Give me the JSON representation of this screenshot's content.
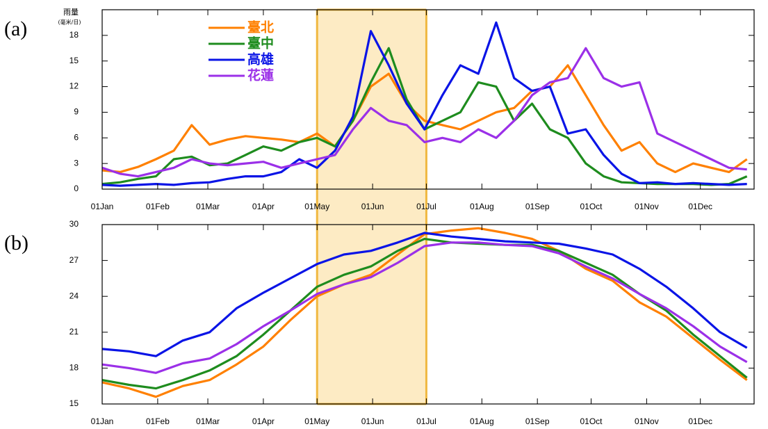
{
  "chart_data": [
    {
      "type": "line",
      "panel": "(a)",
      "ylabel": "雨量",
      "yunit": "(毫米/日)",
      "xlim": [
        1,
        365
      ],
      "ylim": [
        0,
        21
      ],
      "yticks": [
        0,
        3,
        6,
        9,
        12,
        15,
        18
      ],
      "xticks": [
        {
          "value": 1,
          "label": "01Jan"
        },
        {
          "value": 32,
          "label": "01Feb"
        },
        {
          "value": 60,
          "label": "01Mar"
        },
        {
          "value": 91,
          "label": "01Apr"
        },
        {
          "value": 121,
          "label": "01May"
        },
        {
          "value": 152,
          "label": "01Jun"
        },
        {
          "value": 182,
          "label": "01Jul"
        },
        {
          "value": 213,
          "label": "01Aug"
        },
        {
          "value": 244,
          "label": "01Sep"
        },
        {
          "value": 274,
          "label": "01Oct"
        },
        {
          "value": 305,
          "label": "01Nov"
        },
        {
          "value": 335,
          "label": "01Dec"
        }
      ],
      "shade": [
        121,
        182
      ],
      "shade_color": "#fdebc4",
      "shade_edge": "#f0b840",
      "legend": "upper-left",
      "x": [
        1,
        11,
        21,
        31,
        41,
        51,
        61,
        71,
        81,
        91,
        101,
        111,
        121,
        131,
        141,
        151,
        161,
        171,
        181,
        191,
        201,
        211,
        221,
        231,
        241,
        251,
        261,
        271,
        281,
        291,
        301,
        311,
        321,
        331,
        341,
        351,
        361
      ],
      "series": [
        {
          "name": "臺北",
          "color": "#ff8000",
          "values": [
            2.2,
            2.0,
            2.6,
            3.5,
            4.5,
            7.5,
            5.2,
            5.8,
            6.2,
            6.0,
            5.8,
            5.5,
            6.5,
            5.0,
            8.0,
            12.0,
            13.5,
            10.0,
            8.0,
            7.5,
            7.0,
            8.0,
            9.0,
            9.5,
            11.5,
            12.0,
            14.5,
            11.0,
            7.5,
            4.5,
            5.5,
            3.0,
            2.0,
            3.0,
            2.5,
            2.0,
            3.5
          ]
        },
        {
          "name": "臺中",
          "color": "#1e8c1e",
          "values": [
            0.6,
            0.8,
            1.2,
            1.5,
            3.5,
            3.8,
            2.8,
            3.0,
            4.0,
            5.0,
            4.5,
            5.5,
            6.0,
            5.0,
            8.0,
            12.5,
            16.5,
            10.5,
            7.0,
            8.0,
            9.0,
            12.5,
            12.0,
            8.0,
            10.0,
            7.0,
            6.0,
            3.0,
            1.5,
            0.8,
            0.7,
            0.6,
            0.6,
            0.6,
            0.5,
            0.6,
            1.5
          ]
        },
        {
          "name": "高雄",
          "color": "#0a14e6",
          "values": [
            0.5,
            0.4,
            0.5,
            0.6,
            0.5,
            0.7,
            0.8,
            1.2,
            1.5,
            1.5,
            2.0,
            3.5,
            2.5,
            4.5,
            8.5,
            18.5,
            14.5,
            10.0,
            7.0,
            11.0,
            14.5,
            13.5,
            19.5,
            13.0,
            11.5,
            12.0,
            6.5,
            7.0,
            4.0,
            1.8,
            0.7,
            0.8,
            0.6,
            0.7,
            0.6,
            0.5,
            0.6
          ]
        },
        {
          "name": "花蓮",
          "color": "#9b30e8",
          "values": [
            2.5,
            1.8,
            1.5,
            2.0,
            2.5,
            3.5,
            3.0,
            2.8,
            3.0,
            3.2,
            2.5,
            3.0,
            3.5,
            4.0,
            7.0,
            9.5,
            8.0,
            7.5,
            5.5,
            6.0,
            5.5,
            7.0,
            6.0,
            8.0,
            11.0,
            12.5,
            13.0,
            16.5,
            13.0,
            12.0,
            12.5,
            6.5,
            5.5,
            4.5,
            3.5,
            2.5,
            2.3
          ]
        }
      ]
    },
    {
      "type": "line",
      "panel": "(b)",
      "xlim": [
        1,
        365
      ],
      "ylim": [
        15,
        30
      ],
      "yticks": [
        15,
        18,
        21,
        24,
        27,
        30
      ],
      "xticks": [
        {
          "value": 1,
          "label": "01Jan"
        },
        {
          "value": 32,
          "label": "01Feb"
        },
        {
          "value": 60,
          "label": "01Mar"
        },
        {
          "value": 91,
          "label": "01Apr"
        },
        {
          "value": 121,
          "label": "01May"
        },
        {
          "value": 152,
          "label": "01Jun"
        },
        {
          "value": 182,
          "label": "01Jul"
        },
        {
          "value": 213,
          "label": "01Aug"
        },
        {
          "value": 244,
          "label": "01Sep"
        },
        {
          "value": 274,
          "label": "01Oct"
        },
        {
          "value": 305,
          "label": "01Nov"
        },
        {
          "value": 335,
          "label": "01Dec"
        }
      ],
      "shade": [
        121,
        182
      ],
      "shade_color": "#fdebc4",
      "shade_edge": "#f0b840",
      "x": [
        1,
        16,
        31,
        46,
        61,
        76,
        91,
        106,
        121,
        136,
        151,
        166,
        181,
        196,
        211,
        226,
        241,
        256,
        271,
        286,
        301,
        316,
        331,
        346,
        361
      ],
      "series": [
        {
          "color": "#ff8000",
          "values": [
            16.8,
            16.3,
            15.6,
            16.5,
            17.0,
            18.3,
            19.8,
            22.0,
            24.0,
            25.0,
            25.8,
            27.5,
            29.2,
            29.5,
            29.7,
            29.3,
            28.8,
            27.8,
            26.3,
            25.3,
            23.5,
            22.3,
            20.5,
            18.7,
            17.0
          ]
        },
        {
          "color": "#1e8c1e",
          "values": [
            17.0,
            16.6,
            16.3,
            17.0,
            17.8,
            19.0,
            20.8,
            22.8,
            24.8,
            25.8,
            26.5,
            27.8,
            28.8,
            28.5,
            28.4,
            28.3,
            28.3,
            27.8,
            26.8,
            25.8,
            24.2,
            22.8,
            20.8,
            19.0,
            17.2
          ]
        },
        {
          "color": "#0a14e6",
          "values": [
            19.6,
            19.4,
            19.0,
            20.3,
            21.0,
            23.0,
            24.3,
            25.5,
            26.7,
            27.5,
            27.8,
            28.5,
            29.3,
            29.0,
            28.8,
            28.6,
            28.5,
            28.4,
            28.0,
            27.5,
            26.3,
            24.8,
            23.0,
            21.0,
            19.7
          ]
        },
        {
          "color": "#9b30e8",
          "values": [
            18.3,
            18.0,
            17.6,
            18.4,
            18.8,
            20.0,
            21.5,
            22.8,
            24.2,
            25.0,
            25.6,
            26.8,
            28.2,
            28.5,
            28.5,
            28.3,
            28.2,
            27.6,
            26.5,
            25.5,
            24.2,
            23.0,
            21.5,
            19.8,
            18.5
          ]
        }
      ]
    }
  ]
}
